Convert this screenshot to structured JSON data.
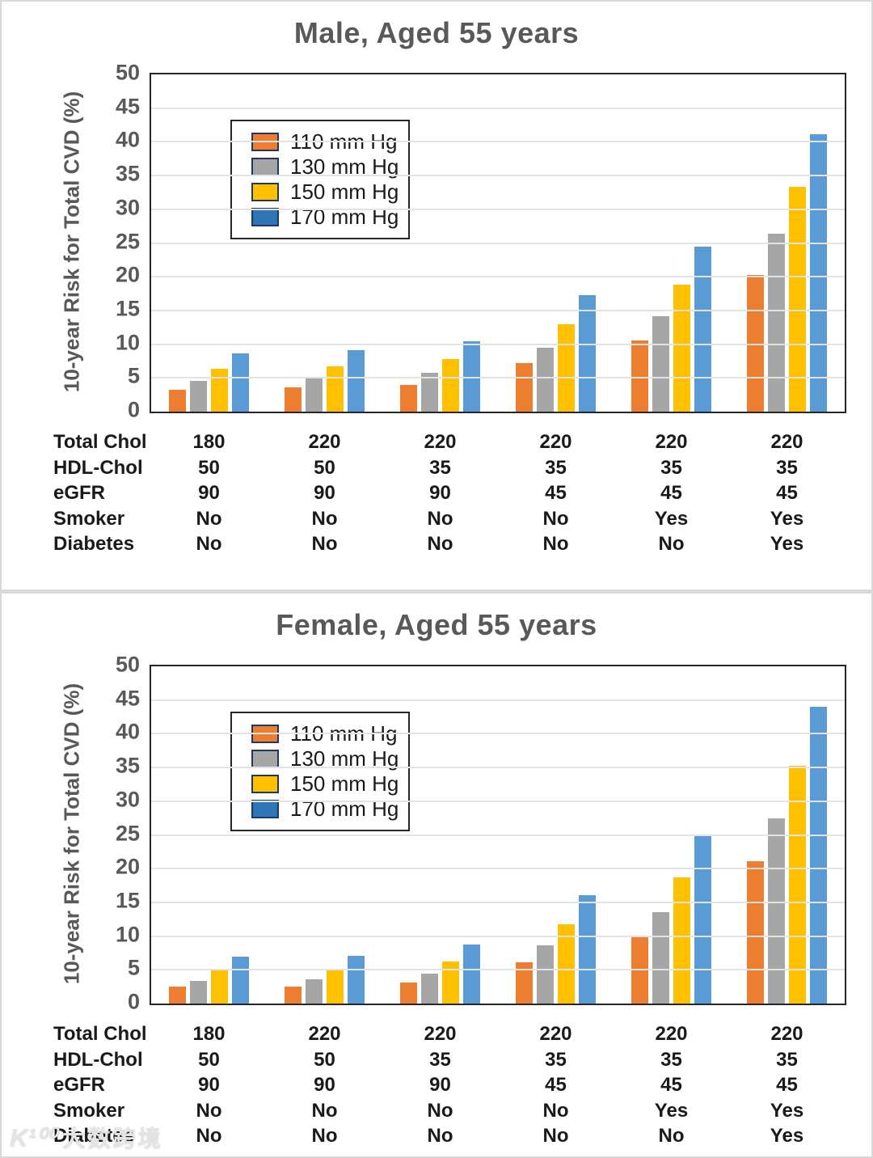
{
  "page": {
    "watermark": {
      "logo": "K¹⁰⁰",
      "text": "大数跨境"
    }
  },
  "chart_data": [
    {
      "type": "bar",
      "title": "Male, Aged 55 years",
      "ylabel": "10-year Risk for Total CVD (%)",
      "ylim": [
        0,
        50
      ],
      "ytick_step": 5,
      "grid": true,
      "legend_position": "upper-left-inside",
      "legend_swatch_border": "#1F3864",
      "series": [
        {
          "name": "110 mm Hg",
          "color": "#ED7D31",
          "swatch_color": "#ED7D31",
          "values": [
            3.2,
            3.6,
            4.0,
            7.2,
            10.5,
            20.3
          ]
        },
        {
          "name": "130 mm Hg",
          "color": "#A6A6A6",
          "swatch_color": "#A6A6A6",
          "values": [
            4.6,
            4.9,
            5.7,
            9.5,
            14.1,
            26.4
          ]
        },
        {
          "name": "150 mm Hg",
          "color": "#FFC000",
          "swatch_color": "#FFC000",
          "values": [
            6.3,
            6.7,
            7.8,
            13.0,
            18.8,
            33.3
          ]
        },
        {
          "name": "170 mm Hg",
          "color": "#5B9BD5",
          "swatch_color": "#2E75B6",
          "values": [
            8.6,
            9.1,
            10.4,
            17.3,
            24.5,
            41.1
          ]
        }
      ],
      "x_table": {
        "rows": [
          {
            "label": "Total Chol",
            "values": [
              "180",
              "220",
              "220",
              "220",
              "220",
              "220"
            ]
          },
          {
            "label": "HDL-Chol",
            "values": [
              "50",
              "50",
              "35",
              "35",
              "35",
              "35"
            ]
          },
          {
            "label": "eGFR",
            "values": [
              "90",
              "90",
              "90",
              "45",
              "45",
              "45"
            ]
          },
          {
            "label": "Smoker",
            "values": [
              "No",
              "No",
              "No",
              "No",
              "Yes",
              "Yes"
            ]
          },
          {
            "label": "Diabetes",
            "values": [
              "No",
              "No",
              "No",
              "No",
              "No",
              "Yes"
            ]
          }
        ]
      }
    },
    {
      "type": "bar",
      "title": "Female, Aged 55 years",
      "ylabel": "10-year Risk for Total CVD (%)",
      "ylim": [
        0,
        50
      ],
      "ytick_step": 5,
      "grid": true,
      "legend_position": "upper-left-inside",
      "legend_swatch_border": "#1F3864",
      "series": [
        {
          "name": "110 mm Hg",
          "color": "#ED7D31",
          "swatch_color": "#ED7D31",
          "values": [
            2.5,
            2.5,
            3.1,
            6.1,
            10.0,
            21.1
          ]
        },
        {
          "name": "130 mm Hg",
          "color": "#A6A6A6",
          "swatch_color": "#A6A6A6",
          "values": [
            3.4,
            3.6,
            4.4,
            8.6,
            13.6,
            27.5
          ]
        },
        {
          "name": "150 mm Hg",
          "color": "#FFC000",
          "swatch_color": "#FFC000",
          "values": [
            5.0,
            5.0,
            6.2,
            11.7,
            18.7,
            35.3
          ]
        },
        {
          "name": "170 mm Hg",
          "color": "#5B9BD5",
          "swatch_color": "#2E75B6",
          "values": [
            6.9,
            7.1,
            8.8,
            16.1,
            24.9,
            44.0
          ]
        }
      ],
      "x_table": {
        "rows": [
          {
            "label": "Total Chol",
            "values": [
              "180",
              "220",
              "220",
              "220",
              "220",
              "220"
            ]
          },
          {
            "label": "HDL-Chol",
            "values": [
              "50",
              "50",
              "35",
              "35",
              "35",
              "35"
            ]
          },
          {
            "label": "eGFR",
            "values": [
              "90",
              "90",
              "90",
              "45",
              "45",
              "45"
            ]
          },
          {
            "label": "Smoker",
            "values": [
              "No",
              "No",
              "No",
              "No",
              "Yes",
              "Yes"
            ]
          },
          {
            "label": "Diabetes",
            "values": [
              "No",
              "No",
              "No",
              "No",
              "No",
              "Yes"
            ]
          }
        ]
      }
    }
  ]
}
